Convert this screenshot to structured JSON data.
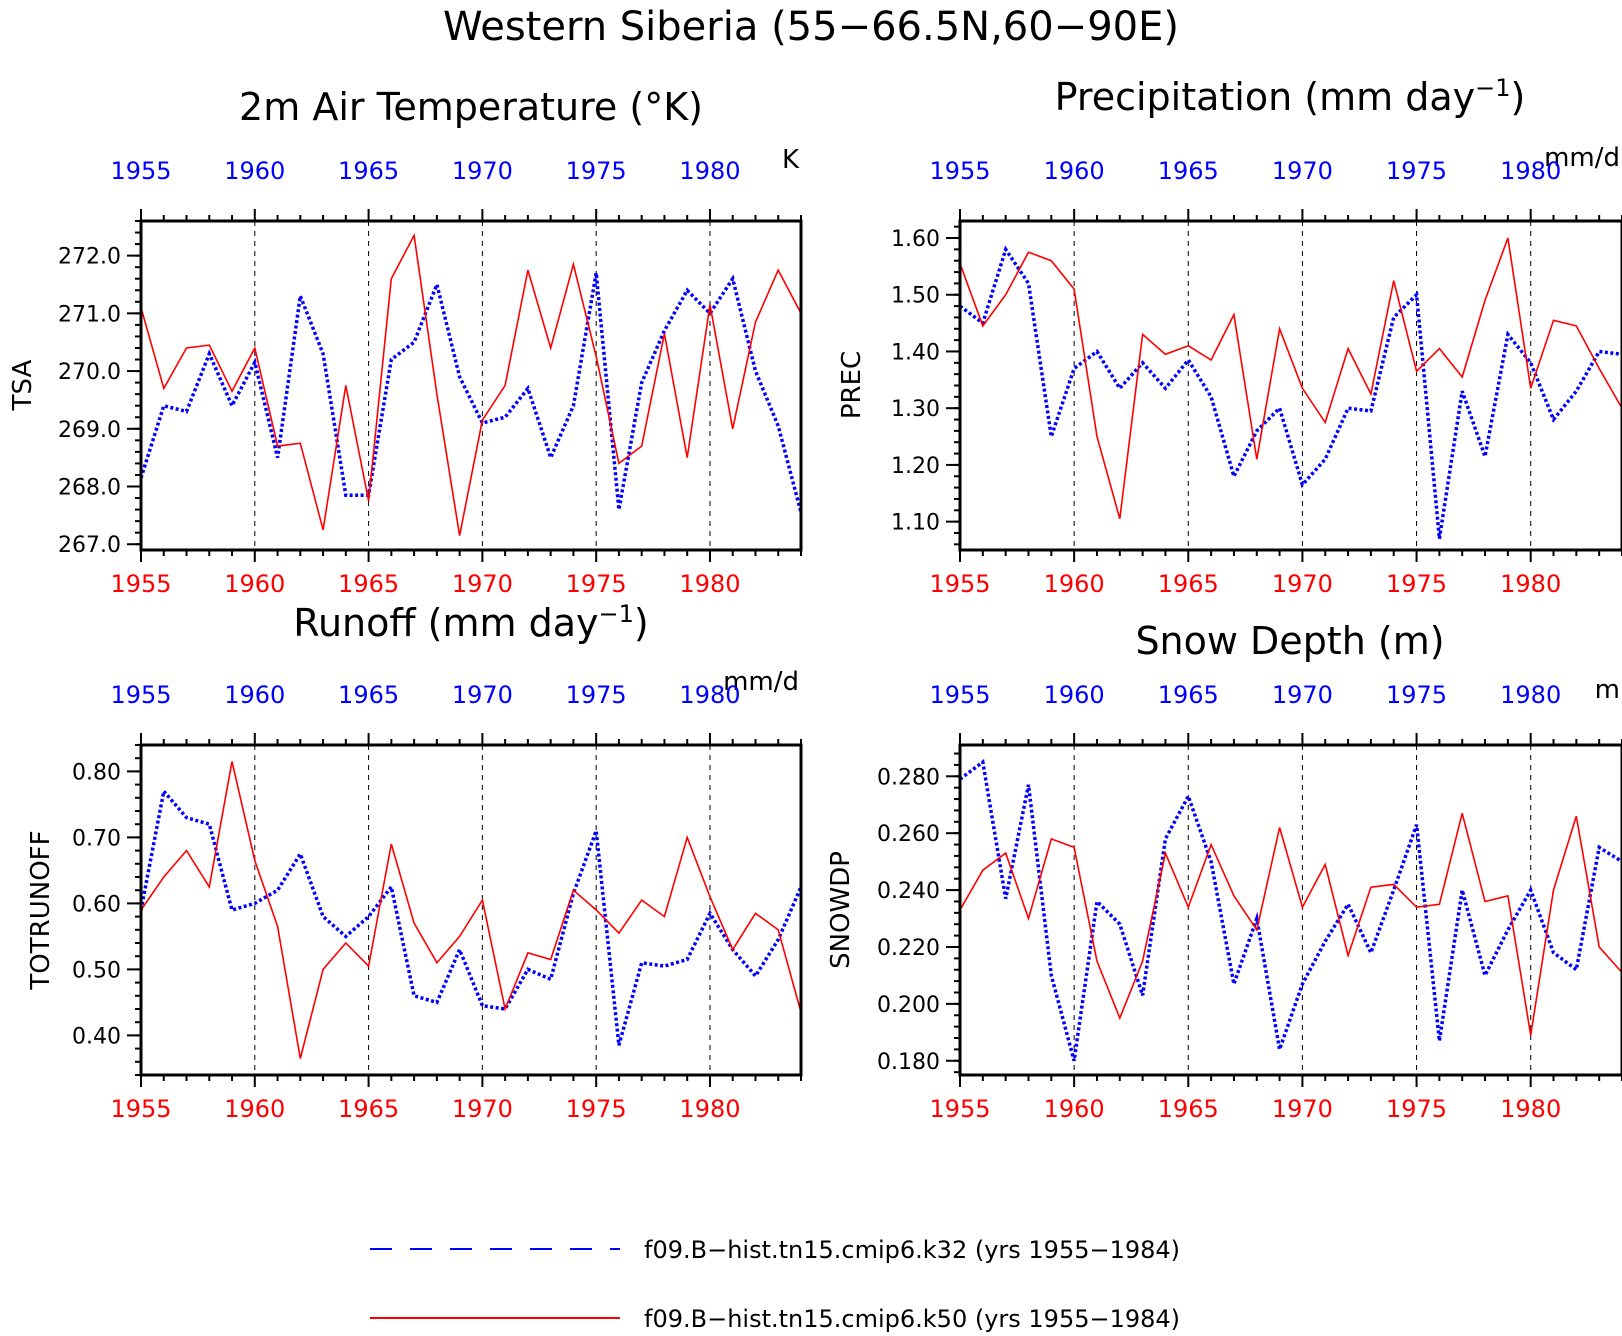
{
  "figure": {
    "title": "Western Siberia (55−66.5N,60−90E)"
  },
  "legend": {
    "items": [
      {
        "label": "f09.B−hist.tn15.cmip6.k32 (yrs 1955−1984)",
        "color": "#0000ff",
        "style": "dashed"
      },
      {
        "label": "f09.B−hist.tn15.cmip6.k50 (yrs 1955−1984)",
        "color": "#ff0000",
        "style": "solid"
      }
    ]
  },
  "colors": {
    "series_a": "#0000ff",
    "series_b": "#ff0000",
    "top_axis_labels": "#0000ff",
    "bottom_axis_labels": "#ff0000"
  },
  "chart_data": [
    {
      "type": "line",
      "title": "2m Air Temperature (°K)",
      "title_sup": "",
      "title_suffix": "",
      "units": "K",
      "ylabel": "TSA",
      "xlim": [
        1955,
        1984
      ],
      "ylim": [
        266.9,
        272.6
      ],
      "yticks": [
        267.0,
        268.0,
        269.0,
        270.0,
        271.0,
        272.0
      ],
      "ytick_labels": [
        "267.0",
        "268.0",
        "269.0",
        "270.0",
        "271.0",
        "272.0"
      ],
      "xticks": [
        1955,
        1960,
        1965,
        1970,
        1975,
        1980
      ],
      "xtick_labels": [
        "1955",
        "1960",
        "1965",
        "1970",
        "1975",
        "1980"
      ],
      "grid": "vertical dashed at tick years",
      "x": [
        1955,
        1956,
        1957,
        1958,
        1959,
        1960,
        1961,
        1962,
        1963,
        1964,
        1965,
        1966,
        1967,
        1968,
        1969,
        1970,
        1971,
        1972,
        1973,
        1974,
        1975,
        1976,
        1977,
        1978,
        1979,
        1980,
        1981,
        1982,
        1983,
        1984
      ],
      "series": [
        {
          "name": "f09.B−hist.tn15.cmip6.k32 (yrs 1955−1984)",
          "values": [
            268.15,
            269.4,
            269.3,
            270.3,
            269.4,
            270.15,
            268.5,
            271.3,
            270.3,
            267.85,
            267.85,
            270.2,
            270.5,
            271.5,
            269.9,
            269.1,
            269.2,
            269.7,
            268.5,
            269.4,
            271.7,
            267.6,
            269.8,
            270.7,
            271.4,
            271.0,
            271.6,
            270.0,
            269.05,
            267.55
          ]
        },
        {
          "name": "f09.B−hist.tn15.cmip6.k50 (yrs 1955−1984)",
          "values": [
            271.1,
            269.7,
            270.4,
            270.45,
            269.65,
            270.4,
            268.7,
            268.75,
            267.25,
            269.75,
            267.75,
            271.6,
            272.35,
            269.6,
            267.15,
            269.15,
            269.75,
            271.75,
            270.4,
            271.85,
            270.25,
            268.4,
            268.7,
            270.65,
            268.5,
            271.15,
            269.0,
            270.85,
            271.75,
            271.0
          ]
        }
      ]
    },
    {
      "type": "line",
      "title": "Precipitation (mm day",
      "title_sup": "−1",
      "title_suffix": ")",
      "units": "mm/d",
      "ylabel": "PREC",
      "xlim": [
        1955,
        1984
      ],
      "ylim": [
        1.05,
        1.63
      ],
      "yticks": [
        1.1,
        1.2,
        1.3,
        1.4,
        1.5,
        1.6
      ],
      "ytick_labels": [
        "1.10",
        "1.20",
        "1.30",
        "1.40",
        "1.50",
        "1.60"
      ],
      "xticks": [
        1955,
        1960,
        1965,
        1970,
        1975,
        1980
      ],
      "xtick_labels": [
        "1955",
        "1960",
        "1965",
        "1970",
        "1975",
        "1980"
      ],
      "grid": "vertical dashed at tick years",
      "x": [
        1955,
        1956,
        1957,
        1958,
        1959,
        1960,
        1961,
        1962,
        1963,
        1964,
        1965,
        1966,
        1967,
        1968,
        1969,
        1970,
        1971,
        1972,
        1973,
        1974,
        1975,
        1976,
        1977,
        1978,
        1979,
        1980,
        1981,
        1982,
        1983,
        1984
      ],
      "series": [
        {
          "name": "f09.B−hist.tn15.cmip6.k32 (yrs 1955−1984)",
          "values": [
            1.48,
            1.45,
            1.58,
            1.52,
            1.25,
            1.37,
            1.4,
            1.335,
            1.38,
            1.335,
            1.385,
            1.32,
            1.18,
            1.26,
            1.3,
            1.165,
            1.21,
            1.3,
            1.295,
            1.46,
            1.5,
            1.07,
            1.33,
            1.215,
            1.43,
            1.38,
            1.28,
            1.33,
            1.4,
            1.395
          ]
        },
        {
          "name": "f09.B−hist.tn15.cmip6.k50 (yrs 1955−1984)",
          "values": [
            1.555,
            1.445,
            1.5,
            1.575,
            1.56,
            1.51,
            1.25,
            1.105,
            1.43,
            1.395,
            1.41,
            1.385,
            1.465,
            1.21,
            1.44,
            1.335,
            1.275,
            1.405,
            1.325,
            1.525,
            1.365,
            1.405,
            1.355,
            1.49,
            1.6,
            1.335,
            1.455,
            1.445,
            1.37,
            1.3
          ]
        }
      ]
    },
    {
      "type": "line",
      "title": "Runoff (mm day",
      "title_sup": "−1",
      "title_suffix": ")",
      "units": "mm/d",
      "ylabel": "TOTRUNOFF",
      "xlim": [
        1955,
        1984
      ],
      "ylim": [
        0.34,
        0.84
      ],
      "yticks": [
        0.4,
        0.5,
        0.6,
        0.7,
        0.8
      ],
      "ytick_labels": [
        "0.40",
        "0.50",
        "0.60",
        "0.70",
        "0.80"
      ],
      "xticks": [
        1955,
        1960,
        1965,
        1970,
        1975,
        1980
      ],
      "xtick_labels": [
        "1955",
        "1960",
        "1965",
        "1970",
        "1975",
        "1980"
      ],
      "grid": "vertical dashed at tick years",
      "x": [
        1955,
        1956,
        1957,
        1958,
        1959,
        1960,
        1961,
        1962,
        1963,
        1964,
        1965,
        1966,
        1967,
        1968,
        1969,
        1970,
        1971,
        1972,
        1973,
        1974,
        1975,
        1976,
        1977,
        1978,
        1979,
        1980,
        1981,
        1982,
        1983,
        1984
      ],
      "series": [
        {
          "name": "f09.B−hist.tn15.cmip6.k32 (yrs 1955−1984)",
          "values": [
            0.59,
            0.77,
            0.73,
            0.72,
            0.59,
            0.6,
            0.62,
            0.675,
            0.58,
            0.55,
            0.58,
            0.625,
            0.46,
            0.45,
            0.53,
            0.445,
            0.44,
            0.5,
            0.485,
            0.615,
            0.71,
            0.385,
            0.51,
            0.505,
            0.515,
            0.585,
            0.53,
            0.49,
            0.545,
            0.625
          ]
        },
        {
          "name": "f09.B−hist.tn15.cmip6.k50 (yrs 1955−1984)",
          "values": [
            0.59,
            0.64,
            0.68,
            0.625,
            0.815,
            0.665,
            0.565,
            0.365,
            0.5,
            0.54,
            0.505,
            0.69,
            0.57,
            0.51,
            0.55,
            0.605,
            0.44,
            0.525,
            0.515,
            0.62,
            0.59,
            0.555,
            0.605,
            0.58,
            0.7,
            0.61,
            0.53,
            0.585,
            0.56,
            0.435
          ]
        }
      ]
    },
    {
      "type": "line",
      "title": "Snow Depth (m)",
      "title_sup": "",
      "title_suffix": "",
      "units": "m",
      "ylabel": "SNOWDP",
      "xlim": [
        1955,
        1984
      ],
      "ylim": [
        0.175,
        0.291
      ],
      "yticks": [
        0.18,
        0.2,
        0.22,
        0.24,
        0.26,
        0.28
      ],
      "ytick_labels": [
        "0.180",
        "0.200",
        "0.220",
        "0.240",
        "0.260",
        "0.280"
      ],
      "xticks": [
        1955,
        1960,
        1965,
        1970,
        1975,
        1980
      ],
      "xtick_labels": [
        "1955",
        "1960",
        "1965",
        "1970",
        "1975",
        "1980"
      ],
      "grid": "vertical dashed at tick years",
      "x": [
        1955,
        1956,
        1957,
        1958,
        1959,
        1960,
        1961,
        1962,
        1963,
        1964,
        1965,
        1966,
        1967,
        1968,
        1969,
        1970,
        1971,
        1972,
        1973,
        1974,
        1975,
        1976,
        1977,
        1978,
        1979,
        1980,
        1981,
        1982,
        1983,
        1984
      ],
      "series": [
        {
          "name": "f09.B−hist.tn15.cmip6.k32 (yrs 1955−1984)",
          "values": [
            0.279,
            0.285,
            0.237,
            0.277,
            0.21,
            0.18,
            0.236,
            0.228,
            0.203,
            0.258,
            0.273,
            0.25,
            0.207,
            0.23,
            0.184,
            0.207,
            0.222,
            0.235,
            0.218,
            0.24,
            0.263,
            0.187,
            0.24,
            0.21,
            0.226,
            0.24,
            0.218,
            0.212,
            0.255,
            0.25
          ]
        },
        {
          "name": "f09.B−hist.tn15.cmip6.k50 (yrs 1955−1984)",
          "values": [
            0.233,
            0.247,
            0.253,
            0.23,
            0.258,
            0.255,
            0.215,
            0.195,
            0.215,
            0.253,
            0.234,
            0.256,
            0.238,
            0.226,
            0.262,
            0.234,
            0.249,
            0.217,
            0.241,
            0.242,
            0.234,
            0.235,
            0.267,
            0.236,
            0.238,
            0.189,
            0.24,
            0.266,
            0.22,
            0.211
          ]
        }
      ]
    }
  ]
}
